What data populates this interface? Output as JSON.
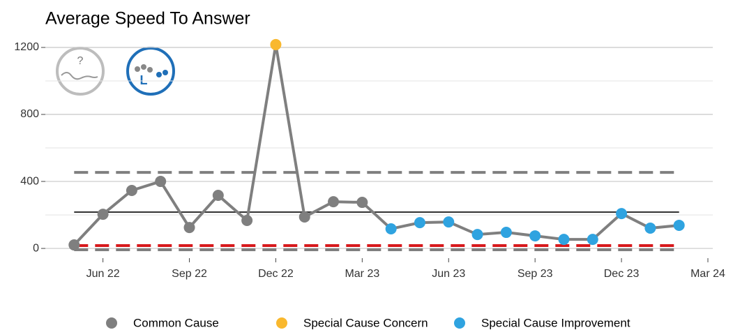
{
  "chart_data": {
    "type": "line",
    "title": "Average Speed To Answer",
    "x": [
      "2022-05",
      "2022-06",
      "2022-07",
      "2022-08",
      "2022-09",
      "2022-10",
      "2022-11",
      "2022-12",
      "2023-01",
      "2023-02",
      "2023-03",
      "2023-04",
      "2023-05",
      "2023-06",
      "2023-07",
      "2023-08",
      "2023-09",
      "2023-10",
      "2023-11",
      "2023-12",
      "2024-01",
      "2024-02"
    ],
    "values": [
      21,
      204,
      346,
      400,
      125,
      317,
      167,
      1217,
      188,
      279,
      275,
      117,
      154,
      158,
      83,
      96,
      75,
      54,
      54,
      208,
      121,
      138
    ],
    "line_color": "#7f7f7f",
    "point_class": [
      0,
      0,
      0,
      0,
      0,
      0,
      0,
      1,
      0,
      0,
      0,
      2,
      2,
      2,
      2,
      2,
      2,
      2,
      2,
      2,
      2,
      2
    ],
    "legend": [
      {
        "name": "Common Cause",
        "color": "#7f7f7f"
      },
      {
        "name": "Special Cause Concern",
        "color": "#f9b82e"
      },
      {
        "name": "Special Cause Improvement",
        "color": "#2fa3e0"
      }
    ],
    "reference_lines": [
      {
        "value": 217,
        "color": "#333333",
        "dashed": false
      },
      {
        "value": 454,
        "color": "#7f7f7f",
        "dashed": true
      },
      {
        "value": -8,
        "color": "#7f7f7f",
        "dashed": true
      },
      {
        "value": 17,
        "color": "#d7191c",
        "dashed": true
      }
    ],
    "xlim": [
      "2022-04",
      "2024-03"
    ],
    "xticks": [
      {
        "value": "2022-06",
        "label": "Jun 22"
      },
      {
        "value": "2022-09",
        "label": "Sep 22"
      },
      {
        "value": "2022-12",
        "label": "Dec 22"
      },
      {
        "value": "2023-03",
        "label": "Mar 23"
      },
      {
        "value": "2023-06",
        "label": "Jun 23"
      },
      {
        "value": "2023-09",
        "label": "Sep 23"
      },
      {
        "value": "2023-12",
        "label": "Dec 23"
      },
      {
        "value": "2024-03",
        "label": "Mar 24"
      }
    ],
    "ylim": [
      -58,
      1275
    ],
    "yticks": [
      0,
      400,
      800,
      1200
    ],
    "yminor": [
      200,
      600,
      1000
    ],
    "grid": true
  }
}
